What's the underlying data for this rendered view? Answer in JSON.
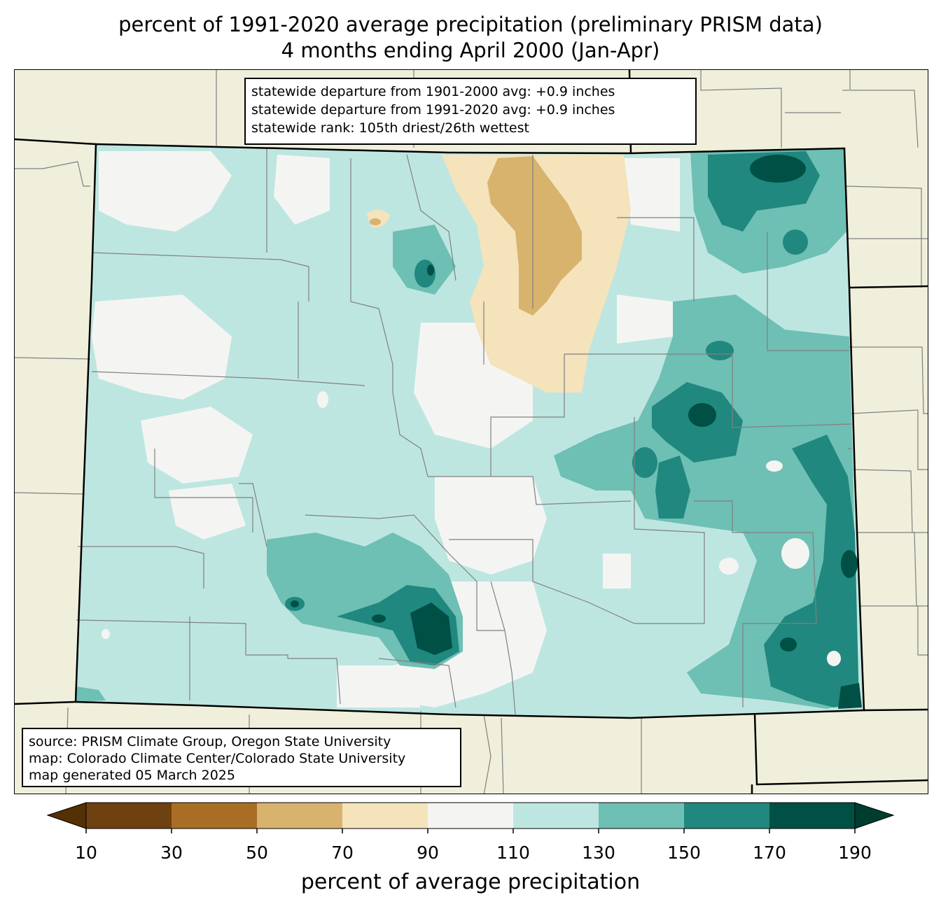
{
  "title": {
    "line1": "percent of 1991-2020 average precipitation (preliminary PRISM data)",
    "line2": "4 months ending April 2000 (Jan-Apr)"
  },
  "stats": {
    "line1": "statewide departure from 1901-2000 avg: +0.9 inches",
    "line2": "statewide departure from 1991-2020 avg: +0.9 inches",
    "line3": "statewide rank: 105th driest/26th wettest"
  },
  "source": {
    "line1": "source: PRISM Climate Group, Oregon State University",
    "line2": "map: Colorado Climate Center/Colorado State University",
    "line3": "map generated 05 March 2025"
  },
  "colorbar": {
    "label": "percent of average precipitation",
    "ticks": [
      "10",
      "30",
      "50",
      "70",
      "90",
      "110",
      "130",
      "150",
      "170",
      "190"
    ],
    "bins": [
      {
        "range": "10-30",
        "color": "#704110"
      },
      {
        "range": "30-50",
        "color": "#a86e25"
      },
      {
        "range": "50-70",
        "color": "#d8b36d"
      },
      {
        "range": "70-90",
        "color": "#f4e3bb"
      },
      {
        "range": "90-110",
        "color": "#f4f5f3"
      },
      {
        "range": "110-130",
        "color": "#bee6e1"
      },
      {
        "range": "130-150",
        "color": "#6ebfb4"
      },
      {
        "range": "150-170",
        "color": "#20887e"
      },
      {
        "range": "170-190",
        "color": "#005045"
      }
    ],
    "under_color": "#543005",
    "over_color": "#003c30"
  }
}
